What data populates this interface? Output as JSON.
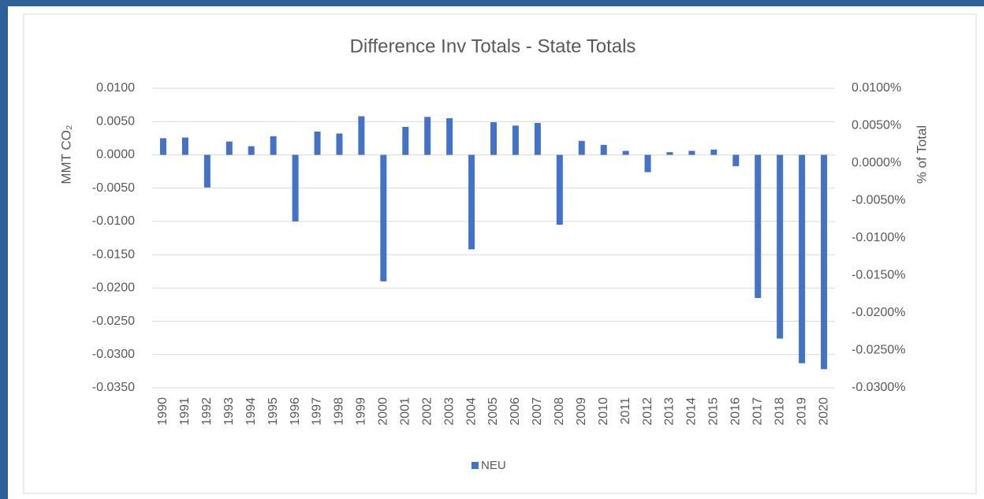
{
  "chart_data": {
    "type": "bar",
    "title": "Difference Inv Totals - State Totals",
    "y_label": "MMT CO₂",
    "y2_label": "% of Total",
    "categories": [
      "1990",
      "1991",
      "1992",
      "1993",
      "1994",
      "1995",
      "1996",
      "1997",
      "1998",
      "1999",
      "2000",
      "2001",
      "2002",
      "2003",
      "2004",
      "2005",
      "2006",
      "2007",
      "2008",
      "2009",
      "2010",
      "2011",
      "2012",
      "2013",
      "2014",
      "2015",
      "2016",
      "2017",
      "2018",
      "2019",
      "2020"
    ],
    "series": [
      {
        "name": "NEU",
        "color": "#4472c4",
        "values": [
          0.0025,
          0.0026,
          -0.0049,
          0.002,
          0.0013,
          0.0028,
          -0.01,
          0.0035,
          0.0032,
          0.0058,
          -0.019,
          0.0042,
          0.0057,
          0.0055,
          -0.0142,
          0.0049,
          0.0044,
          0.0048,
          -0.0105,
          0.0021,
          0.0015,
          0.0006,
          -0.0026,
          0.0004,
          0.0006,
          0.0008,
          -0.0017,
          -0.0215,
          -0.0276,
          -0.0313,
          -0.0322
        ]
      }
    ],
    "ylim": [
      -0.035,
      0.01
    ],
    "yticks": [
      {
        "value": 0.01,
        "label": "0.0100"
      },
      {
        "value": 0.005,
        "label": "0.0050"
      },
      {
        "value": 0,
        "label": "0.0000"
      },
      {
        "value": -0.005,
        "label": "-0.0050"
      },
      {
        "value": -0.01,
        "label": "-0.0100"
      },
      {
        "value": -0.015,
        "label": "-0.0150"
      },
      {
        "value": -0.02,
        "label": "-0.0200"
      },
      {
        "value": -0.025,
        "label": "-0.0250"
      },
      {
        "value": -0.03,
        "label": "-0.0300"
      },
      {
        "value": -0.035,
        "label": "-0.0350"
      }
    ],
    "y2lim": [
      -0.03,
      0.01
    ],
    "y2ticks": [
      {
        "value": 0.01,
        "label": "0.0100%"
      },
      {
        "value": 0.005,
        "label": "0.0050%"
      },
      {
        "value": 0,
        "label": "0.0000%"
      },
      {
        "value": -0.005,
        "label": "-0.0050%"
      },
      {
        "value": -0.01,
        "label": "-0.0100%"
      },
      {
        "value": -0.015,
        "label": "-0.0150%"
      },
      {
        "value": -0.02,
        "label": "-0.0200%"
      },
      {
        "value": -0.025,
        "label": "-0.0250%"
      },
      {
        "value": -0.03,
        "label": "-0.0300%"
      }
    ],
    "grid": true,
    "legend": "bottom"
  }
}
